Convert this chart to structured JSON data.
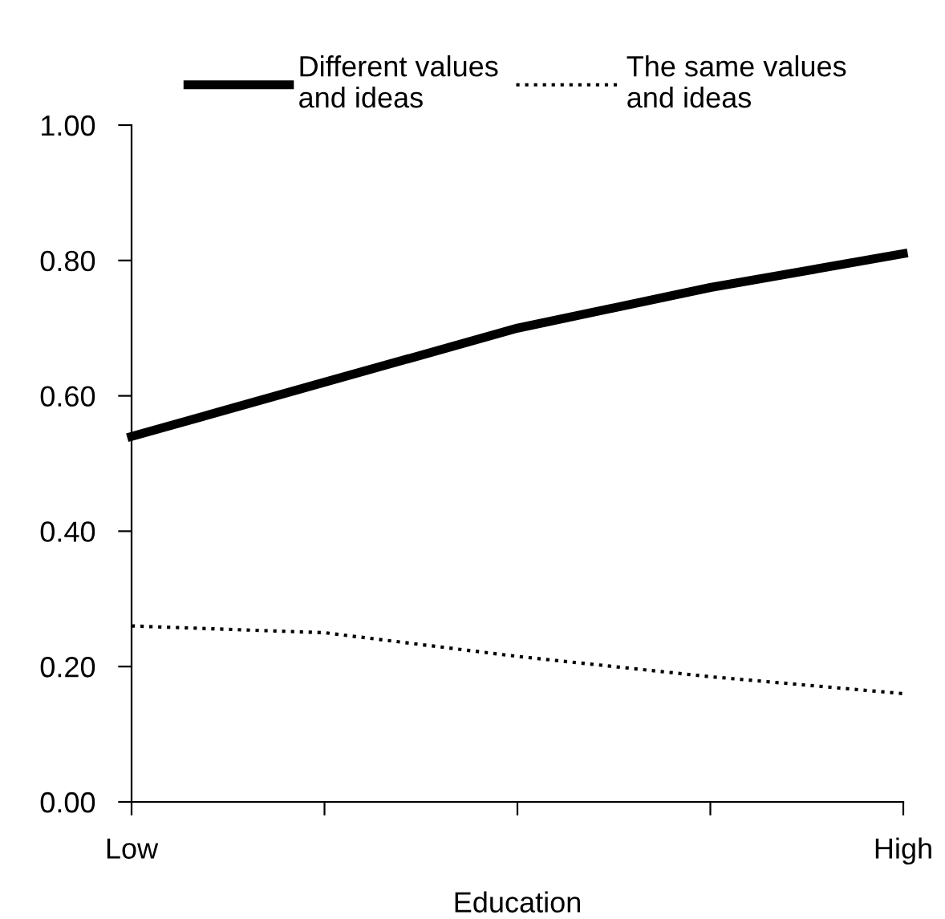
{
  "chart_data": {
    "type": "line",
    "xlabel": "Education",
    "categories": [
      "Low",
      null,
      null,
      null,
      "High"
    ],
    "series": [
      {
        "name": "Different values\nand ideas",
        "color": "#000000",
        "line_style": "solid",
        "values": [
          0.54,
          0.62,
          0.7,
          0.76,
          0.81
        ]
      },
      {
        "name": "The same values\nand ideas",
        "color": "#000000",
        "line_style": "dotted",
        "values": [
          0.26,
          0.25,
          0.215,
          0.185,
          0.16
        ]
      }
    ],
    "ylim": [
      0,
      1.0
    ],
    "yticks": [
      {
        "value": 0,
        "label": "0.00"
      },
      {
        "value": 0.2,
        "label": "0.20"
      },
      {
        "value": 0.4,
        "label": "0.40"
      },
      {
        "value": 0.6,
        "label": "0.60"
      },
      {
        "value": 0.8,
        "label": "0.80"
      },
      {
        "value": 1.0,
        "label": "1.00"
      }
    ],
    "grid": false,
    "legend": "top",
    "marker": "none"
  }
}
